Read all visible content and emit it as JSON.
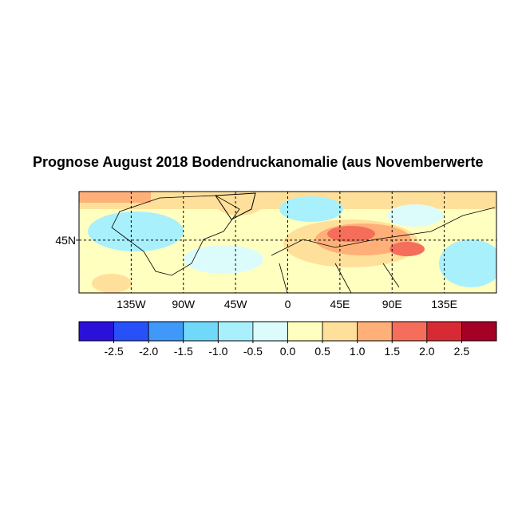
{
  "title": "Prognose August 2018 Bodendruckanomalie (aus Novemberwerte",
  "map": {
    "lon_range": [
      -180,
      180
    ],
    "lat_range": [
      7,
      80
    ],
    "lon_ticks": [
      {
        "value": -135,
        "label": "135W"
      },
      {
        "value": -90,
        "label": "90W"
      },
      {
        "value": -45,
        "label": "45W"
      },
      {
        "value": 0,
        "label": "0"
      },
      {
        "value": 45,
        "label": "45E"
      },
      {
        "value": 90,
        "label": "90E"
      },
      {
        "value": 135,
        "label": "135E"
      }
    ],
    "lat_ticks": [
      {
        "value": 45,
        "label": "45N"
      }
    ]
  },
  "colorbar": {
    "range": [
      -3,
      3
    ],
    "colors": [
      "#2a10d8",
      "#2850f8",
      "#4098f8",
      "#70d8f8",
      "#a8f0fc",
      "#dcfcfc",
      "#ffffc0",
      "#ffe09a",
      "#ffb078",
      "#f56e5c",
      "#d82a34",
      "#a50026"
    ],
    "ticks": [
      {
        "value": -2.5,
        "label": "-2.5"
      },
      {
        "value": -2,
        "label": "-2.0"
      },
      {
        "value": -1.5,
        "label": "-1.5"
      },
      {
        "value": -1,
        "label": "-1.0"
      },
      {
        "value": -0.5,
        "label": "-0.5"
      },
      {
        "value": 0,
        "label": "0.0"
      },
      {
        "value": 0.5,
        "label": "0.5"
      },
      {
        "value": 1,
        "label": "1.0"
      },
      {
        "value": 1.5,
        "label": "1.5"
      },
      {
        "value": 2,
        "label": "2.0"
      },
      {
        "value": 2.5,
        "label": "2.5"
      }
    ]
  }
}
